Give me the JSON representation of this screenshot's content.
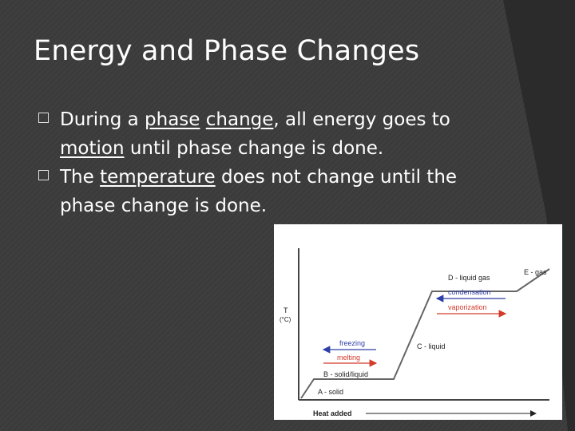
{
  "slide": {
    "title": "Energy and Phase Changes",
    "bullets": [
      {
        "parts": [
          "During a ",
          "phase",
          " ",
          "change",
          ", all energy goes to ",
          "motion",
          " until phase change is done."
        ],
        "underlined": [
          false,
          true,
          false,
          true,
          false,
          true,
          false
        ]
      },
      {
        "parts": [
          "The ",
          "temperature",
          " does not change until the phase change is done."
        ],
        "underlined": [
          false,
          true,
          false
        ]
      }
    ]
  },
  "diagram": {
    "y_axis_label_line1": "T",
    "y_axis_label_line2": "(°C)",
    "x_axis_label": "Heat added",
    "segments": {
      "a": "A - solid",
      "b": "B - solid/liquid",
      "c": "C - liquid",
      "d": "D - liquid gas",
      "e": "E - gas"
    },
    "arrows": {
      "freezing": "freezing",
      "melting": "melting",
      "condensation": "condensation",
      "vaporization": "vaporization"
    },
    "colors": {
      "cooling": "#2f3fa8",
      "heating": "#d23a2a",
      "curve": "#666666"
    }
  }
}
